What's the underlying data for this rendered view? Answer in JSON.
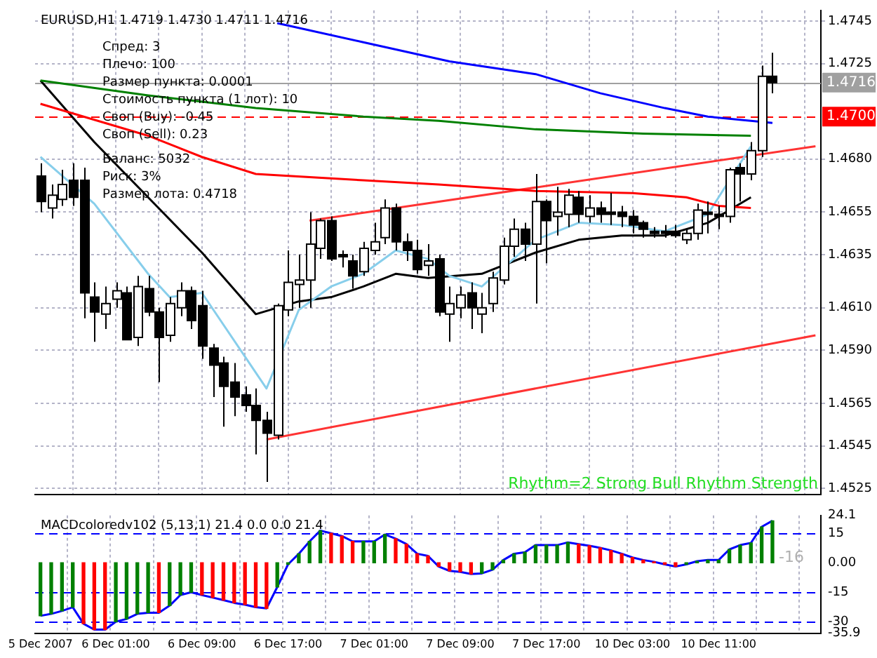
{
  "chart_data": [
    {
      "type": "candlestick",
      "title": "EURUSD,H1 1.4719 1.4730 1.4711 1.4716",
      "annotations": [
        "Спред: 3",
        "Плечо: 100",
        "Размер пункта: 0.0001",
        "Стоимость пункта (1 лот): 10",
        "Своп (Buy): -0.45",
        "Своп (Sell): 0.23",
        "Баланс: 5032",
        "Риск: 3%",
        "Размер лота: 0.4718",
        "Rhythm=2 Strong Bull Rhythm Strength"
      ],
      "categories": [
        null,
        null,
        null,
        null,
        null,
        null,
        null,
        null,
        null,
        null,
        null,
        null,
        null,
        null,
        null,
        null,
        null,
        null,
        null,
        null,
        null,
        null,
        null,
        null,
        null,
        null,
        null,
        null,
        null,
        null,
        null,
        null,
        null,
        null,
        null,
        null,
        null,
        null,
        null,
        null,
        null,
        null,
        null,
        null,
        null,
        null,
        null,
        null,
        null,
        null,
        null,
        null,
        null,
        null,
        null,
        null,
        null,
        null,
        null,
        null,
        null,
        null,
        null,
        null,
        null,
        null,
        null,
        null,
        null,
        null,
        null,
        null,
        null
      ],
      "ohlc": [
        [
          1.4672,
          1.4678,
          1.4655,
          1.466
        ],
        [
          1.4657,
          1.4668,
          1.4652,
          1.4663
        ],
        [
          1.4661,
          1.4675,
          1.4658,
          1.4668
        ],
        [
          1.467,
          1.4678,
          1.4658,
          1.4662
        ],
        [
          1.467,
          1.4676,
          1.4605,
          1.4617
        ],
        [
          1.4615,
          1.4622,
          1.4594,
          1.4608
        ],
        [
          1.4607,
          1.462,
          1.46,
          1.4612
        ],
        [
          1.4614,
          1.4622,
          1.461,
          1.4618
        ],
        [
          1.4617,
          1.462,
          1.4595,
          1.4595
        ],
        [
          1.4596,
          1.4625,
          1.4592,
          1.462
        ],
        [
          1.4619,
          1.4625,
          1.4606,
          1.4608
        ],
        [
          1.4608,
          1.461,
          1.4575,
          1.4596
        ],
        [
          1.4597,
          1.4615,
          1.4594,
          1.4612
        ],
        [
          1.461,
          1.4622,
          1.4606,
          1.4618
        ],
        [
          1.4618,
          1.462,
          1.46,
          1.4604
        ],
        [
          1.4611,
          1.4618,
          1.4586,
          1.4592
        ],
        [
          1.4591,
          1.4593,
          1.4568,
          1.4583
        ],
        [
          1.4584,
          1.4587,
          1.4554,
          1.4573
        ],
        [
          1.4575,
          1.4584,
          1.4559,
          1.4568
        ],
        [
          1.4569,
          1.4573,
          1.4561,
          1.4564
        ],
        [
          1.4564,
          1.4572,
          1.4541,
          1.4557
        ],
        [
          1.4557,
          1.4561,
          1.4528,
          1.4551
        ],
        [
          1.455,
          1.4612,
          1.4548,
          1.4611
        ],
        [
          1.4609,
          1.4637,
          1.4606,
          1.4622
        ],
        [
          1.4621,
          1.4635,
          1.461,
          1.4623
        ],
        [
          1.4623,
          1.4655,
          1.461,
          1.464
        ],
        [
          1.4638,
          1.4652,
          1.4633,
          1.4651
        ],
        [
          1.4651,
          1.4653,
          1.4632,
          1.4633
        ],
        [
          1.4635,
          1.4637,
          1.4629,
          1.4634
        ],
        [
          1.4632,
          1.4635,
          1.4619,
          1.4625
        ],
        [
          1.4627,
          1.4641,
          1.4625,
          1.4638
        ],
        [
          1.4637,
          1.465,
          1.4635,
          1.4641
        ],
        [
          1.4643,
          1.4661,
          1.464,
          1.4657
        ],
        [
          1.4657,
          1.4659,
          1.4637,
          1.4641
        ],
        [
          1.4641,
          1.4645,
          1.4632,
          1.4637
        ],
        [
          1.4637,
          1.4642,
          1.4626,
          1.4628
        ],
        [
          1.463,
          1.464,
          1.4625,
          1.4632
        ],
        [
          1.4633,
          1.4635,
          1.4606,
          1.4608
        ],
        [
          1.4607,
          1.462,
          1.4594,
          1.4612
        ],
        [
          1.461,
          1.462,
          1.4605,
          1.4616
        ],
        [
          1.4617,
          1.4622,
          1.46,
          1.461
        ],
        [
          1.4607,
          1.4617,
          1.4598,
          1.461
        ],
        [
          1.4612,
          1.4627,
          1.4608,
          1.4624
        ],
        [
          1.4623,
          1.4643,
          1.4621,
          1.4639
        ],
        [
          1.4639,
          1.4652,
          1.4634,
          1.4647
        ],
        [
          1.4647,
          1.465,
          1.4632,
          1.464
        ],
        [
          1.464,
          1.4673,
          1.4612,
          1.466
        ],
        [
          1.466,
          1.4661,
          1.4631,
          1.4651
        ],
        [
          1.4653,
          1.4667,
          1.4644,
          1.4655
        ],
        [
          1.4654,
          1.4666,
          1.4648,
          1.4663
        ],
        [
          1.4662,
          1.4665,
          1.465,
          1.4654
        ],
        [
          1.4653,
          1.4663,
          1.465,
          1.4657
        ],
        [
          1.4657,
          1.466,
          1.465,
          1.4654
        ],
        [
          1.4655,
          1.4664,
          1.4649,
          1.4654
        ],
        [
          1.4655,
          1.4658,
          1.4648,
          1.4653
        ],
        [
          1.4653,
          1.4656,
          1.4645,
          1.4649
        ],
        [
          1.465,
          1.4651,
          1.4643,
          1.4647
        ],
        [
          1.4646,
          1.4648,
          1.4643,
          1.4645
        ],
        [
          1.4646,
          1.4649,
          1.4643,
          1.4645
        ],
        [
          1.4646,
          1.4649,
          1.4643,
          1.4644
        ],
        [
          1.4642,
          1.4647,
          1.464,
          1.4645
        ],
        [
          1.4645,
          1.4659,
          1.4642,
          1.4656
        ],
        [
          1.4655,
          1.466,
          1.4645,
          1.4654
        ],
        [
          1.4654,
          1.4658,
          1.4647,
          1.4653
        ],
        [
          1.4653,
          1.4676,
          1.465,
          1.4675
        ],
        [
          1.4676,
          1.4678,
          1.466,
          1.4673
        ],
        [
          1.4673,
          1.4688,
          1.467,
          1.4684
        ],
        [
          1.4684,
          1.4724,
          1.4681,
          1.4719
        ],
        [
          1.4719,
          1.473,
          1.4711,
          1.4716
        ],
        null,
        null,
        null,
        null
      ],
      "series": [
        {
          "type": "line",
          "color": "#0000ff",
          "values": [
            null,
            null,
            null,
            null,
            null,
            null,
            null,
            null,
            null,
            null,
            null,
            null,
            null,
            null,
            null,
            null,
            null,
            null,
            null,
            null,
            null,
            null,
            1.4744,
            null,
            null,
            null,
            null,
            null,
            null,
            null,
            1.4735,
            null,
            null,
            null,
            null,
            null,
            null,
            null,
            1.4726,
            null,
            null,
            null,
            null,
            null,
            null,
            null,
            1.472,
            null,
            null,
            null,
            null,
            null,
            1.4711,
            null,
            null,
            null,
            null,
            null,
            1.4704,
            null,
            null,
            null,
            1.47,
            null,
            null,
            null,
            1.4698,
            null,
            1.4697,
            null,
            null,
            null,
            null
          ]
        },
        {
          "type": "line",
          "color": "#008000",
          "values": [
            1.4717,
            null,
            null,
            null,
            null,
            null,
            null,
            null,
            null,
            null,
            1.471,
            null,
            null,
            null,
            null,
            null,
            null,
            null,
            null,
            null,
            1.4704,
            null,
            null,
            null,
            null,
            null,
            null,
            null,
            null,
            null,
            1.47,
            null,
            null,
            null,
            null,
            null,
            null,
            1.4698,
            null,
            null,
            null,
            null,
            null,
            null,
            null,
            null,
            1.4694,
            null,
            null,
            null,
            null,
            null,
            null,
            null,
            null,
            null,
            1.4692,
            null,
            null,
            null,
            null,
            null,
            null,
            null,
            null,
            null,
            1.4691,
            null,
            null,
            null,
            null,
            null,
            null
          ]
        },
        {
          "type": "line",
          "color": "#ff0000",
          "values": [
            1.4706,
            null,
            null,
            null,
            null,
            null,
            null,
            null,
            null,
            null,
            1.4691,
            null,
            null,
            null,
            null,
            1.4681,
            null,
            null,
            null,
            null,
            1.4673,
            null,
            null,
            null,
            null,
            null,
            null,
            null,
            null,
            null,
            1.467,
            null,
            null,
            null,
            null,
            null,
            null,
            1.4668,
            null,
            null,
            null,
            null,
            null,
            null,
            null,
            null,
            1.4665,
            null,
            null,
            null,
            null,
            null,
            null,
            null,
            null,
            1.4664,
            null,
            null,
            null,
            null,
            1.4662,
            null,
            null,
            1.4658,
            null,
            null,
            1.4657,
            null,
            null,
            null,
            null,
            null,
            null
          ]
        },
        {
          "type": "line",
          "color": "#87ceeb",
          "values": [
            1.4681,
            null,
            null,
            null,
            null,
            1.4659,
            null,
            null,
            null,
            null,
            1.4626,
            null,
            1.4615,
            null,
            null,
            1.4617,
            null,
            null,
            null,
            null,
            null,
            1.4572,
            null,
            null,
            1.4609,
            null,
            null,
            1.462,
            null,
            null,
            1.4626,
            null,
            null,
            1.4637,
            null,
            null,
            1.4633,
            null,
            1.4625,
            null,
            null,
            1.462,
            null,
            null,
            null,
            null,
            1.4642,
            null,
            null,
            null,
            1.465,
            null,
            null,
            null,
            1.4649,
            null,
            null,
            null,
            1.4646,
            null,
            null,
            null,
            1.4654,
            null,
            null,
            null,
            1.4686,
            null,
            null,
            null,
            null,
            null,
            null
          ]
        },
        {
          "type": "line",
          "color": "#000000",
          "values": [
            1.4717,
            null,
            null,
            null,
            null,
            1.4688,
            null,
            null,
            null,
            null,
            1.4662,
            null,
            null,
            null,
            null,
            1.4636,
            null,
            null,
            null,
            null,
            1.4607,
            null,
            null,
            null,
            1.4613,
            null,
            null,
            1.4615,
            null,
            null,
            1.462,
            null,
            null,
            1.4626,
            null,
            null,
            1.4624,
            null,
            null,
            null,
            null,
            1.4626,
            null,
            null,
            null,
            null,
            1.4636,
            null,
            null,
            null,
            1.4642,
            null,
            null,
            null,
            1.4644,
            null,
            null,
            null,
            1.4644,
            null,
            null,
            null,
            1.465,
            null,
            null,
            null,
            1.4662,
            null,
            null,
            null,
            null,
            null,
            null
          ]
        },
        {
          "type": "line",
          "color": "#ff3333",
          "values": [
            null,
            null,
            null,
            null,
            null,
            null,
            null,
            null,
            null,
            null,
            null,
            null,
            null,
            null,
            null,
            null,
            null,
            null,
            null,
            null,
            null,
            null,
            null,
            null,
            null,
            1.4651,
            null,
            null,
            null,
            null,
            null,
            null,
            null,
            null,
            null,
            null,
            null,
            null,
            null,
            null,
            null,
            null,
            null,
            null,
            null,
            null,
            null,
            null,
            null,
            null,
            null,
            null,
            null,
            null,
            null,
            null,
            null,
            null,
            null,
            null,
            null,
            null,
            null,
            null,
            null,
            null,
            null,
            null,
            null,
            null,
            null,
            null,
            1.4686
          ]
        },
        {
          "type": "line",
          "color": "#ff3333",
          "values": [
            null,
            null,
            null,
            null,
            null,
            null,
            null,
            null,
            null,
            null,
            null,
            null,
            null,
            null,
            null,
            null,
            null,
            null,
            null,
            null,
            null,
            1.4548,
            null,
            null,
            null,
            null,
            null,
            null,
            null,
            null,
            null,
            null,
            null,
            null,
            null,
            null,
            null,
            null,
            null,
            null,
            null,
            null,
            null,
            null,
            null,
            null,
            null,
            null,
            null,
            null,
            null,
            null,
            null,
            null,
            null,
            null,
            null,
            null,
            null,
            null,
            null,
            null,
            null,
            null,
            null,
            null,
            null,
            null,
            null,
            null,
            null,
            null,
            1.4597
          ]
        }
      ],
      "ylim": [
        1.4522,
        1.475
      ],
      "yticks": [
        1.4745,
        1.4725,
        {
          "value": 1.468,
          "label": "1.4680"
        },
        1.4655,
        1.4635,
        {
          "value": 1.461,
          "label": "1.4610"
        },
        {
          "value": 1.459,
          "label": "1.4590"
        },
        1.4565,
        1.4545,
        1.4525
      ],
      "ref_lines": [
        {
          "axis": "y",
          "value": 1.4716,
          "label": "1.4716",
          "color": "#a0a0a0"
        },
        {
          "axis": "y",
          "value": 1.47,
          "label": "1.4700",
          "color": "#ff0000",
          "line_style": "dashed"
        }
      ],
      "grid": true,
      "marker": "none",
      "tick_labels": "y"
    },
    {
      "type": "bar",
      "title": "MACDcoloredv102 (5,13,1) 21.4 0.0 0.0 21.4",
      "annotations": [
        "-16"
      ],
      "categories": [
        "5 Dec 2007",
        null,
        null,
        null,
        null,
        null,
        null,
        "6 Dec 01:00",
        null,
        null,
        null,
        null,
        null,
        null,
        null,
        "6 Dec 09:00",
        null,
        null,
        null,
        null,
        null,
        null,
        null,
        "6 Dec 17:00",
        null,
        null,
        null,
        null,
        null,
        null,
        null,
        "7 Dec 01:00",
        null,
        null,
        null,
        null,
        null,
        null,
        null,
        "7 Dec 09:00",
        null,
        null,
        null,
        null,
        null,
        null,
        null,
        "7 Dec 17:00",
        null,
        null,
        null,
        null,
        null,
        null,
        null,
        "10 Dec 03:00",
        null,
        null,
        null,
        null,
        null,
        null,
        null,
        "10 Dec 11:00",
        null,
        null,
        null,
        null,
        null,
        null,
        null,
        null,
        null
      ],
      "series": [
        {
          "type": "bar",
          "values": [
            -27,
            -26,
            -24.5,
            -22.6,
            -31,
            -34,
            -34,
            -30,
            -28.6,
            -26,
            -25.4,
            -25.4,
            -21.8,
            -16.4,
            -15,
            -16.4,
            -17.7,
            -19,
            -20.4,
            -21.3,
            -22.6,
            -23.2,
            -12.3,
            -0.8,
            4.6,
            10.9,
            16.4,
            15,
            13.6,
            10.9,
            10.9,
            10.9,
            14.4,
            12.3,
            9.5,
            4.6,
            3.5,
            -1.9,
            -4.1,
            -4.6,
            -5.7,
            -5.4,
            -3.5,
            1.4,
            4.6,
            5.4,
            9,
            9,
            9,
            10.4,
            9.5,
            8.7,
            7.6,
            6.3,
            4.6,
            2.7,
            1.4,
            0.5,
            -0.8,
            -1.9,
            -0.8,
            0.8,
            1.4,
            1.4,
            6.8,
            9,
            10.1,
            18.3,
            21.4,
            null,
            null,
            null,
            null
          ],
          "colors": [
            "#008000",
            "#008000",
            "#008000",
            "#008000",
            "#ff0000",
            "#ff0000",
            "#ff0000",
            "#008000",
            "#008000",
            "#008000",
            "#008000",
            "#ff0000",
            "#008000",
            "#008000",
            "#008000",
            "#ff0000",
            "#ff0000",
            "#ff0000",
            "#ff0000",
            "#ff0000",
            "#ff0000",
            "#ff0000",
            "#008000",
            "#008000",
            "#008000",
            "#008000",
            "#008000",
            "#ff0000",
            "#ff0000",
            "#ff0000",
            "#008000",
            "#008000",
            "#008000",
            "#ff0000",
            "#ff0000",
            "#ff0000",
            "#ff0000",
            "#ff0000",
            "#ff0000",
            "#ff0000",
            "#ff0000",
            "#008000",
            "#008000",
            "#008000",
            "#008000",
            "#008000",
            "#008000",
            "#008000",
            "#008000",
            "#008000",
            "#ff0000",
            "#ff0000",
            "#ff0000",
            "#ff0000",
            "#ff0000",
            "#ff0000",
            "#ff0000",
            "#ff0000",
            "#ff0000",
            "#ff0000",
            "#008000",
            "#008000",
            "#008000",
            "#008000",
            "#008000",
            "#008000",
            "#008000",
            "#008000",
            "#008000",
            "#008000",
            "#008000",
            "#008000",
            "#008000"
          ]
        },
        {
          "type": "line",
          "color": "#0000ff",
          "values": [
            -27,
            -26,
            -24.5,
            -22.6,
            -31,
            -34,
            -34,
            -30,
            -28.6,
            -26,
            -25.4,
            -25.4,
            -21.8,
            -16.4,
            -15,
            -16.4,
            -17.7,
            -19,
            -20.4,
            -21.3,
            -22.6,
            -23.2,
            -12.3,
            -0.8,
            4.6,
            10.9,
            16.4,
            15,
            13.6,
            10.9,
            10.9,
            10.9,
            14.4,
            12.3,
            9.5,
            4.6,
            3.5,
            -1.9,
            -4.1,
            -4.6,
            -5.7,
            -5.4,
            -3.5,
            1.4,
            4.6,
            5.4,
            9,
            9,
            9,
            10.4,
            9.5,
            8.7,
            7.6,
            6.3,
            4.6,
            2.7,
            1.4,
            0.5,
            -0.8,
            -1.9,
            -0.8,
            0.8,
            1.4,
            1.4,
            6.8,
            9,
            10.1,
            18.3,
            21.4,
            null,
            null,
            null,
            null
          ]
        }
      ],
      "ylim": [
        -35.9,
        24.1
      ],
      "yticks": [
        24.1,
        15,
        {
          "value": 0,
          "label": "0.00"
        },
        -15,
        -30,
        -35.9
      ],
      "ref_lines": [
        {
          "axis": "y",
          "value": 15,
          "color": "#0000ff",
          "line_style": "dashed"
        },
        {
          "axis": "y",
          "value": -15,
          "color": "#0000ff",
          "line_style": "dashed"
        },
        {
          "axis": "y",
          "value": -30,
          "color": "#0000ff",
          "line_style": "dashed"
        }
      ],
      "grid": "x",
      "marker": "none"
    }
  ]
}
